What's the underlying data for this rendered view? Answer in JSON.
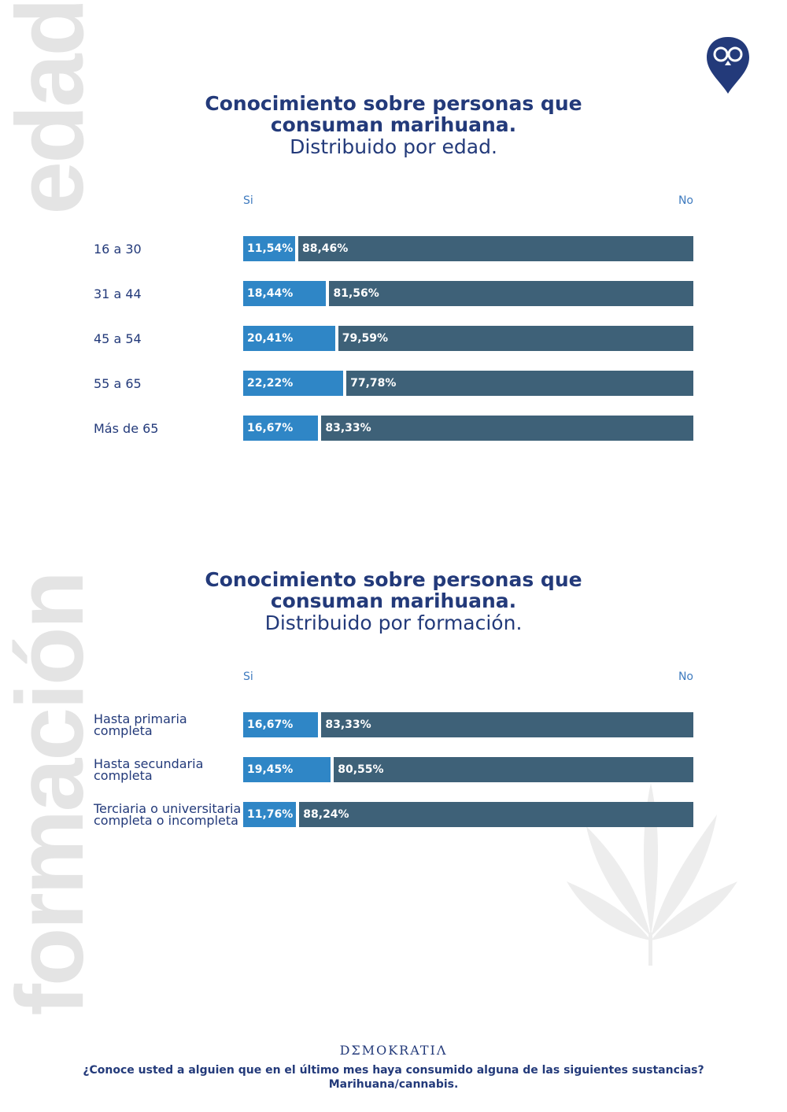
{
  "chart_data": [
    {
      "type": "bar",
      "stacked": true,
      "orientation": "horizontal",
      "side_label": "edad",
      "title": "Conocimiento sobre personas que consuman marihuana.",
      "subtitle": "Distribuido por edad.",
      "categories": [
        "16 a 30",
        "31 a 44",
        "45 a 54",
        "55 a 65",
        "Más de 65"
      ],
      "series": [
        {
          "name": "Si",
          "color": "#2f86c6",
          "values": [
            11.54,
            18.44,
            20.41,
            22.22,
            16.67
          ],
          "value_labels": [
            "11,54%",
            "18,44%",
            "20,41%",
            "22,22%",
            "16,67%"
          ]
        },
        {
          "name": "No",
          "color": "#3e6178",
          "values": [
            88.46,
            81.56,
            79.59,
            77.78,
            83.33
          ],
          "value_labels": [
            "88,46%",
            "81,56%",
            "79,59%",
            "77,78%",
            "83,33%"
          ]
        }
      ],
      "xlim": [
        0,
        100
      ]
    },
    {
      "type": "bar",
      "stacked": true,
      "orientation": "horizontal",
      "side_label": "formación",
      "title": "Conocimiento sobre personas que consuman marihuana.",
      "subtitle": "Distribuido por formación.",
      "categories": [
        "Hasta primaria completa",
        "Hasta secundaria completa",
        "Terciaria o universitaria completa o incompleta"
      ],
      "series": [
        {
          "name": "Si",
          "color": "#2f86c6",
          "values": [
            16.67,
            19.45,
            11.76
          ],
          "value_labels": [
            "16,67%",
            "19,45%",
            "11,76%"
          ]
        },
        {
          "name": "No",
          "color": "#3e6178",
          "values": [
            83.33,
            80.55,
            88.24
          ],
          "value_labels": [
            "83,33%",
            "80,55%",
            "88,24%"
          ]
        }
      ],
      "xlim": [
        0,
        100
      ]
    }
  ],
  "brand": "DΣMOKRATIΛ",
  "footer": {
    "question": "¿Conoce usted a alguien que en el último mes haya consumido alguna de las siguientes sustancias?",
    "answer": "Marihuana/cannabis."
  }
}
